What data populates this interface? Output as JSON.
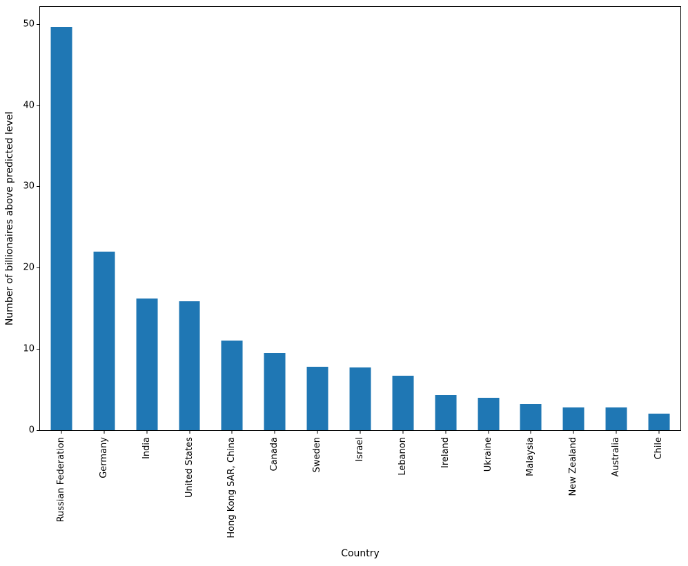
{
  "figure": {
    "background": "#ffffff",
    "spine_color": "#000000",
    "text_color": "#000000"
  },
  "chart_data": {
    "type": "bar",
    "title": "",
    "xlabel": "Country",
    "ylabel": "Number of billionaires above predicted level",
    "categories": [
      "Russian Federation",
      "Germany",
      "India",
      "United States",
      "Hong Kong SAR, China",
      "Canada",
      "Sweden",
      "Israel",
      "Lebanon",
      "Ireland",
      "Ukraine",
      "Malaysia",
      "New Zealand",
      "Australia",
      "Chile"
    ],
    "values": [
      49.6,
      22.0,
      16.2,
      15.9,
      11.0,
      9.5,
      7.8,
      7.7,
      6.7,
      4.3,
      4.0,
      3.2,
      2.8,
      2.8,
      2.0
    ],
    "bar_color": "#1f77b4",
    "bar_width_fraction": 0.5,
    "ylim": [
      0,
      52.1
    ],
    "yticks": [
      0,
      10,
      20,
      30,
      40,
      50
    ],
    "x_tick_rotation": 90,
    "grid": false,
    "legend": null
  }
}
